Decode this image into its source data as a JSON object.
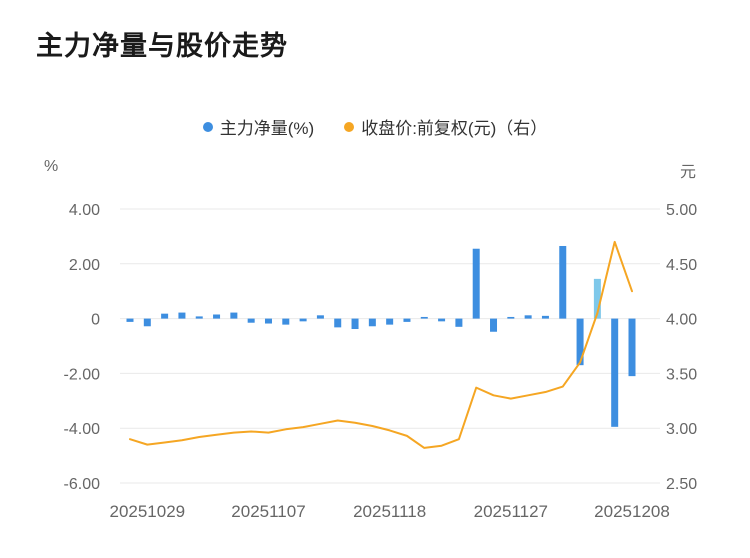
{
  "page": {
    "title": "主力净量与股价走势"
  },
  "legend": [
    {
      "label": "主力净量(%)",
      "color": "#3D8EE0"
    },
    {
      "label": "收盘价:前复权(元)（右）",
      "color": "#F5A623"
    }
  ],
  "axes": {
    "left_unit": "%",
    "right_unit": "元",
    "left_ticks": [
      "4.00",
      "2.00",
      "0",
      "-2.00",
      "-4.00",
      "-6.00"
    ],
    "right_ticks": [
      "5.00",
      "4.50",
      "4.00",
      "3.50",
      "3.00",
      "2.50"
    ],
    "x_ticks": [
      "20251029",
      "20251107",
      "20251118",
      "20251127",
      "20251208"
    ]
  },
  "chart_data": {
    "type": "bar+line",
    "title": "主力净量与股价走势",
    "grid": true,
    "legend_position": "top",
    "left_ylim": [
      -6.0,
      4.0
    ],
    "right_ylim": [
      2.5,
      5.0
    ],
    "x": [
      "20251028",
      "20251029",
      "20251030",
      "20251031",
      "20251103",
      "20251104",
      "20251105",
      "20251106",
      "20251107",
      "20251110",
      "20251111",
      "20251112",
      "20251113",
      "20251114",
      "20251117",
      "20251118",
      "20251119",
      "20251120",
      "20251121",
      "20251124",
      "20251125",
      "20251126",
      "20251127",
      "20251128",
      "20251201",
      "20251202",
      "20251203",
      "20251204",
      "20251205",
      "20251208"
    ],
    "x_tick_indices": [
      1,
      8,
      15,
      22,
      29
    ],
    "highlight_index": 27,
    "highlight_color": "#7EC8EA",
    "grid_color": "#E9E9E9",
    "tick_color": "#666666",
    "series": [
      {
        "name": "主力净量(%)",
        "type": "bar",
        "axis": "left",
        "color": "#3D8EE0",
        "values": [
          -0.12,
          -0.28,
          0.18,
          0.22,
          0.08,
          0.15,
          0.22,
          -0.15,
          -0.18,
          -0.22,
          -0.1,
          0.12,
          -0.32,
          -0.38,
          -0.28,
          -0.22,
          -0.12,
          0.06,
          -0.1,
          -0.3,
          2.55,
          -0.48,
          0.06,
          0.12,
          0.1,
          2.65,
          -1.7,
          1.45,
          -3.95,
          -2.1
        ]
      },
      {
        "name": "收盘价:前复权(元)（右）",
        "type": "line",
        "axis": "right",
        "color": "#F5A623",
        "values": [
          2.9,
          2.85,
          2.87,
          2.89,
          2.92,
          2.94,
          2.96,
          2.97,
          2.96,
          2.99,
          3.01,
          3.04,
          3.07,
          3.05,
          3.02,
          2.98,
          2.93,
          2.82,
          2.84,
          2.9,
          3.37,
          3.3,
          3.27,
          3.3,
          3.33,
          3.38,
          3.6,
          4.05,
          4.7,
          4.25
        ]
      }
    ]
  }
}
